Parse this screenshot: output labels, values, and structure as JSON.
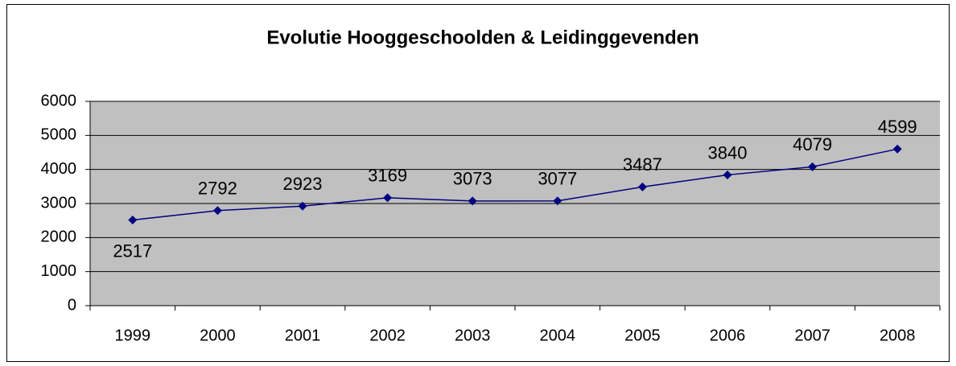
{
  "chart_data": {
    "type": "line",
    "title": "Evolutie Hooggeschoolden & Leidinggevenden",
    "categories": [
      "1999",
      "2000",
      "2001",
      "2002",
      "2003",
      "2004",
      "2005",
      "2006",
      "2007",
      "2008"
    ],
    "values": [
      2517,
      2792,
      2923,
      3169,
      3073,
      3077,
      3487,
      3840,
      4079,
      4599
    ],
    "color": "#000080",
    "plot_background": "#c0c0c0",
    "ylim": [
      0,
      6000
    ],
    "yticks": [
      0,
      1000,
      2000,
      3000,
      4000,
      5000,
      6000
    ],
    "grid": true
  }
}
